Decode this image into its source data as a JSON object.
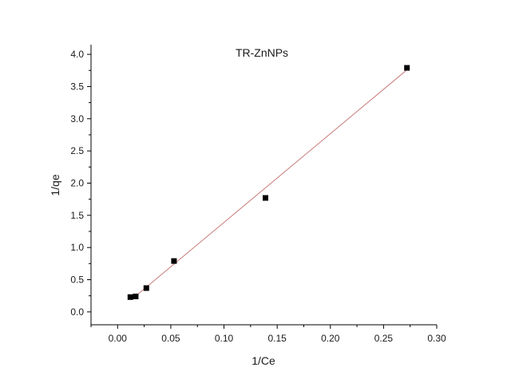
{
  "chart_data": {
    "type": "scatter",
    "title": "TR-ZnNPs",
    "xlabel": "1/Ce",
    "ylabel": "1/qe",
    "xlim": [
      -0.025,
      0.3
    ],
    "ylim": [
      -0.2,
      4.15
    ],
    "x_ticks": [
      0.0,
      0.05,
      0.1,
      0.15,
      0.2,
      0.25,
      0.3
    ],
    "x_tick_labels": [
      "0.00",
      "0.05",
      "0.10",
      "0.15",
      "0.20",
      "0.25",
      "0.30"
    ],
    "y_ticks": [
      0.0,
      0.5,
      1.0,
      1.5,
      2.0,
      2.5,
      3.0,
      3.5,
      4.0
    ],
    "y_tick_labels": [
      "0.0",
      "0.5",
      "1.0",
      "1.5",
      "2.0",
      "2.5",
      "3.0",
      "3.5",
      "4.0"
    ],
    "grid": false,
    "legend": "none",
    "series": [
      {
        "x": [
          0.012,
          0.017,
          0.027,
          0.053,
          0.139,
          0.272
        ],
        "y": [
          0.23,
          0.24,
          0.37,
          0.79,
          1.77,
          3.79
        ],
        "marker": "square",
        "color": "#000000"
      }
    ],
    "fit_line": {
      "x": [
        0.018,
        0.272
      ],
      "y": [
        0.26,
        3.76
      ],
      "color": "#c87a78"
    }
  }
}
